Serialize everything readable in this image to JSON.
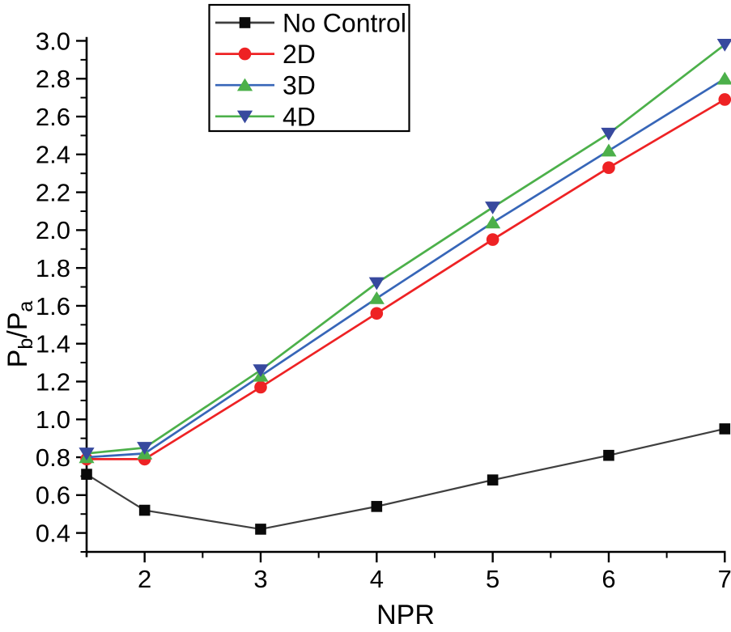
{
  "figure": {
    "background_color": "#ffffff",
    "axis_color": "#000000",
    "text_color": "#000000"
  },
  "chart_data": {
    "type": "line",
    "title": "",
    "xlabel": "NPR",
    "ylabel": "Pb/Pa",
    "ylabel_parts": [
      {
        "text": "P",
        "sub": false
      },
      {
        "text": "b",
        "sub": true
      },
      {
        "text": "/P",
        "sub": false
      },
      {
        "text": "a",
        "sub": true
      }
    ],
    "x": [
      1.5,
      2,
      3,
      4,
      5,
      6,
      7
    ],
    "series": [
      {
        "name": "No Control",
        "marker": "square",
        "line_color": "#3f3f3f",
        "marker_color": "#0a0a0a",
        "values": [
          0.71,
          0.52,
          0.42,
          0.54,
          0.68,
          0.81,
          0.95
        ]
      },
      {
        "name": "2D",
        "marker": "circle",
        "line_color": "#ee2224",
        "marker_color": "#ee2224",
        "values": [
          0.79,
          0.79,
          1.17,
          1.56,
          1.95,
          2.33,
          2.69
        ]
      },
      {
        "name": "3D",
        "marker": "triangle-up",
        "line_color": "#3766b8",
        "marker_color": "#4cb04a",
        "values": [
          0.8,
          0.82,
          1.23,
          1.64,
          2.04,
          2.42,
          2.8
        ]
      },
      {
        "name": "4D",
        "marker": "triangle-down",
        "line_color": "#4cb04a",
        "marker_color": "#37499e",
        "values": [
          0.82,
          0.85,
          1.26,
          1.72,
          2.12,
          2.51,
          2.98
        ]
      }
    ],
    "xlim": [
      1.5,
      7.0
    ],
    "ylim": [
      0.3,
      3.02
    ],
    "x_major_ticks": [
      2,
      3,
      4,
      5,
      6,
      7
    ],
    "x_tick_labels": [
      "2",
      "3",
      "4",
      "5",
      "6",
      "7"
    ],
    "x_minor_ticks": [
      2.5,
      3.5,
      4.5,
      5.5,
      6.5
    ],
    "y_major_ticks": [
      0.4,
      0.6,
      0.8,
      1.0,
      1.2,
      1.4,
      1.6,
      1.8,
      2.0,
      2.2,
      2.4,
      2.6,
      2.8,
      3.0
    ],
    "y_tick_labels": [
      "0.4",
      "0.6",
      "0.8",
      "1.0",
      "1.2",
      "1.4",
      "1.6",
      "1.8",
      "2.0",
      "2.2",
      "2.4",
      "2.6",
      "2.8",
      "3.0"
    ],
    "y_minor_ticks": [
      0.3,
      0.5,
      0.7,
      0.9,
      1.1,
      1.3,
      1.5,
      1.7,
      1.9,
      2.1,
      2.3,
      2.5,
      2.7,
      2.9
    ],
    "grid": false,
    "legend": {
      "position": "top-inner",
      "entries": [
        "No Control",
        "2D",
        "3D",
        "4D"
      ]
    }
  }
}
